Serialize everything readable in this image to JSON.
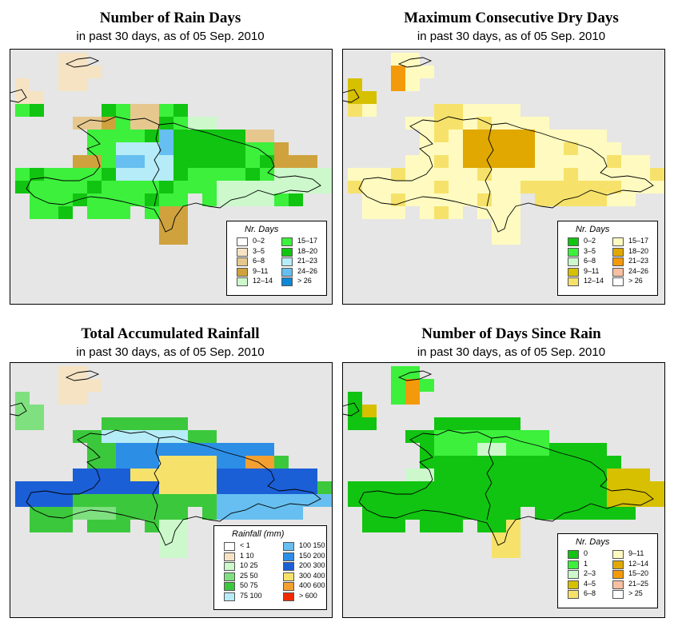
{
  "panels": [
    {
      "id": "rain-days",
      "title": "Number of Rain Days",
      "subtitle": "in past 30 days, as of  05 Sep. 2010",
      "legend": {
        "title": "Nr. Days",
        "items": [
          {
            "label": "0–2",
            "color": "#ffffff"
          },
          {
            "label": "3–5",
            "color": "#f5e3c3"
          },
          {
            "label": "6–8",
            "color": "#e6c88e"
          },
          {
            "label": "9–11",
            "color": "#cfa23e"
          },
          {
            "label": "12–14",
            "color": "#ccf8cc"
          },
          {
            "label": "15–17",
            "color": "#3cf03c"
          },
          {
            "label": "18–20",
            "color": "#11c411"
          },
          {
            "label": "21–23",
            "color": "#b5ecf8"
          },
          {
            "label": "24–26",
            "color": "#66bff0"
          },
          {
            "label": "> 26",
            "color": "#0c88d6"
          }
        ]
      }
    },
    {
      "id": "dry-days",
      "title": "Maximum Consecutive Dry Days",
      "subtitle": "in past 30 days, as of  05 Sep. 2010",
      "legend": {
        "title": "Nr. Days",
        "items": [
          {
            "label": "0–2",
            "color": "#11c411"
          },
          {
            "label": "3–5",
            "color": "#3cf03c"
          },
          {
            "label": "6–8",
            "color": "#ccf8cc"
          },
          {
            "label": "9–11",
            "color": "#d6c000"
          },
          {
            "label": "12–14",
            "color": "#f6e26a"
          },
          {
            "label": "15–17",
            "color": "#fffbc0"
          },
          {
            "label": "18–20",
            "color": "#e0a800"
          },
          {
            "label": "21–23",
            "color": "#f39a0b"
          },
          {
            "label": "24–26",
            "color": "#f7c0a0"
          },
          {
            "label": "> 26",
            "color": "#ffffff"
          }
        ]
      }
    },
    {
      "id": "rainfall",
      "title": "Total Accumulated Rainfall",
      "subtitle": "in past 30 days, as of  05 Sep. 2010",
      "legend": {
        "title": "Rainfall (mm)",
        "items": [
          {
            "label": "< 1",
            "color": "#ffffff"
          },
          {
            "label": "1    10",
            "color": "#f5e3c3"
          },
          {
            "label": "10    25",
            "color": "#ccf8cc"
          },
          {
            "label": "25    50",
            "color": "#7fe07f"
          },
          {
            "label": "50    75",
            "color": "#3cc83c"
          },
          {
            "label": "75    100",
            "color": "#b5ecf8"
          },
          {
            "label": "100    150",
            "color": "#66bff0"
          },
          {
            "label": "150    200",
            "color": "#2d8ee6"
          },
          {
            "label": "200    300",
            "color": "#1b5fd6"
          },
          {
            "label": "300    400",
            "color": "#f6e26a"
          },
          {
            "label": "400    600",
            "color": "#f3a030"
          },
          {
            "label": "> 600",
            "color": "#f02a00"
          }
        ]
      }
    },
    {
      "id": "since-rain",
      "title": "Number of Days Since Rain",
      "subtitle": "in past 30 days, as of  05 Sep. 2010",
      "legend": {
        "title": "Nr. Days",
        "items": [
          {
            "label": "0",
            "color": "#11c411"
          },
          {
            "label": "1",
            "color": "#3cf03c"
          },
          {
            "label": "2–3",
            "color": "#ccf8cc"
          },
          {
            "label": "4–5",
            "color": "#d6c000"
          },
          {
            "label": "6–8",
            "color": "#f6e26a"
          },
          {
            "label": "9–11",
            "color": "#fffbc0"
          },
          {
            "label": "12–14",
            "color": "#e0a800"
          },
          {
            "label": "15–20",
            "color": "#f39a0b"
          },
          {
            "label": "21–25",
            "color": "#f7c0a0"
          },
          {
            "label": "> 25",
            "color": "#ffffff"
          }
        ]
      }
    }
  ]
}
